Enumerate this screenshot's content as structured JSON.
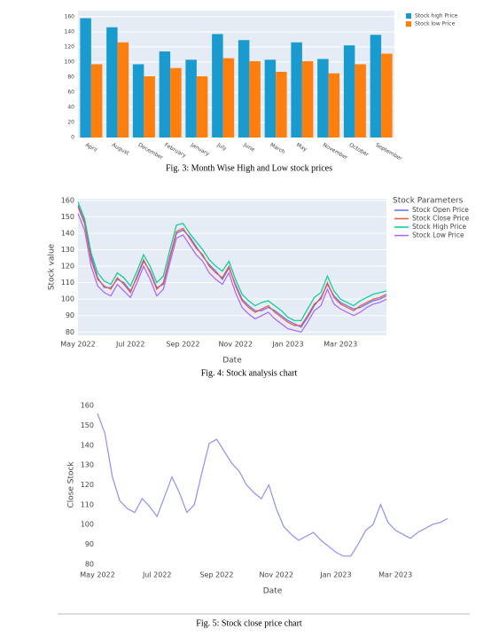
{
  "chart_data": [
    {
      "type": "bar",
      "caption": "Fig. 3:  Month Wise High and Low stock prices",
      "categories": [
        "April",
        "August",
        "December",
        "February",
        "January",
        "July",
        "June",
        "March",
        "May",
        "November",
        "October",
        "September"
      ],
      "series": [
        {
          "name": "Stock high Price",
          "color": "#1a9bd0",
          "values": [
            158,
            146,
            97,
            114,
            103,
            137,
            129,
            103,
            126,
            104,
            122,
            136
          ]
        },
        {
          "name": "Stock low Price",
          "color": "#ff7f0e",
          "values": [
            97,
            126,
            81,
            92,
            81,
            105,
            101,
            87,
            101,
            85,
            97,
            111
          ]
        }
      ],
      "ylim": [
        0,
        168
      ],
      "yticks": [
        0,
        20,
        40,
        60,
        80,
        100,
        120,
        140,
        160
      ],
      "grid": true
    },
    {
      "type": "line",
      "caption": "Fig. 4:  Stock analysis chart",
      "x_label": "Date",
      "y_label": "Stock value",
      "legend_title": "Stock Parameters",
      "categories": [
        "May 2022",
        null,
        null,
        null,
        null,
        null,
        null,
        null,
        "Jul 2022",
        null,
        null,
        null,
        null,
        null,
        null,
        null,
        "Sep 2022",
        null,
        null,
        null,
        null,
        null,
        null,
        null,
        "Nov 2022",
        null,
        null,
        null,
        null,
        null,
        null,
        null,
        "Jan 2023",
        null,
        null,
        null,
        null,
        null,
        null,
        null,
        "Mar 2023",
        null,
        null,
        null,
        null,
        null,
        null,
        null
      ],
      "series": [
        {
          "name": "Stock Open Price",
          "color": "#636efa",
          "values": [
            157,
            147,
            126,
            113,
            107,
            107,
            112,
            110,
            105,
            113,
            123,
            117,
            107,
            109,
            125,
            140,
            142,
            138,
            132,
            126,
            121,
            117,
            112,
            119,
            109,
            100,
            96,
            93,
            93,
            95,
            93,
            90,
            87,
            85,
            83,
            89,
            96,
            101,
            109,
            102,
            98,
            96,
            94,
            95,
            97,
            99,
            100,
            102
          ]
        },
        {
          "name": "Stock Close Price",
          "color": "#ef553b",
          "values": [
            156,
            146,
            124,
            112,
            108,
            106,
            113,
            109,
            104,
            114,
            124,
            116,
            106,
            110,
            126,
            141,
            143,
            137,
            131,
            127,
            120,
            116,
            113,
            120,
            108,
            99,
            95,
            92,
            94,
            96,
            92,
            89,
            86,
            84,
            84,
            90,
            97,
            100,
            110,
            101,
            97,
            95,
            93,
            96,
            98,
            100,
            101,
            103
          ]
        },
        {
          "name": "Stock High Price",
          "color": "#00cc96",
          "values": [
            159,
            149,
            128,
            116,
            111,
            109,
            116,
            113,
            108,
            117,
            127,
            120,
            110,
            114,
            130,
            145,
            146,
            140,
            135,
            130,
            124,
            120,
            117,
            123,
            112,
            103,
            99,
            96,
            98,
            99,
            96,
            93,
            89,
            87,
            87,
            94,
            101,
            104,
            114,
            105,
            100,
            98,
            96,
            99,
            101,
            103,
            104,
            105
          ]
        },
        {
          "name": "Stock Low Price",
          "color": "#ab63fa",
          "values": [
            152,
            142,
            120,
            108,
            104,
            102,
            109,
            105,
            101,
            110,
            120,
            112,
            102,
            106,
            122,
            137,
            139,
            133,
            127,
            123,
            116,
            112,
            109,
            116,
            104,
            95,
            91,
            88,
            90,
            92,
            88,
            85,
            82,
            81,
            80,
            86,
            93,
            96,
            106,
            97,
            94,
            92,
            90,
            92,
            95,
            97,
            98,
            100
          ]
        }
      ],
      "ylim": [
        78,
        161
      ],
      "yticks": [
        80,
        90,
        100,
        110,
        120,
        130,
        140,
        150,
        160
      ],
      "grid": true
    },
    {
      "type": "line",
      "caption": "Fig. 5:  Stock close price chart",
      "x_label": "Date",
      "y_label": "Close Stock",
      "categories": [
        "May 2022",
        null,
        null,
        null,
        null,
        null,
        null,
        null,
        "Jul 2022",
        null,
        null,
        null,
        null,
        null,
        null,
        null,
        "Sep 2022",
        null,
        null,
        null,
        null,
        null,
        null,
        null,
        "Nov 2022",
        null,
        null,
        null,
        null,
        null,
        null,
        null,
        "Jan 2023",
        null,
        null,
        null,
        null,
        null,
        null,
        null,
        "Mar 2023",
        null,
        null,
        null,
        null,
        null,
        null,
        null
      ],
      "values": [
        156,
        146,
        124,
        112,
        108,
        106,
        113,
        109,
        104,
        114,
        124,
        116,
        106,
        110,
        126,
        141,
        143,
        137,
        131,
        127,
        120,
        116,
        113,
        120,
        108,
        99,
        95,
        92,
        94,
        96,
        92,
        89,
        86,
        84,
        84,
        90,
        97,
        100,
        110,
        101,
        97,
        95,
        93,
        96,
        98,
        100,
        101,
        103
      ],
      "color": "#8f8ff2",
      "ylim": [
        79,
        161
      ],
      "yticks": [
        80,
        90,
        100,
        110,
        120,
        130,
        140,
        150,
        160
      ],
      "grid": false
    }
  ]
}
